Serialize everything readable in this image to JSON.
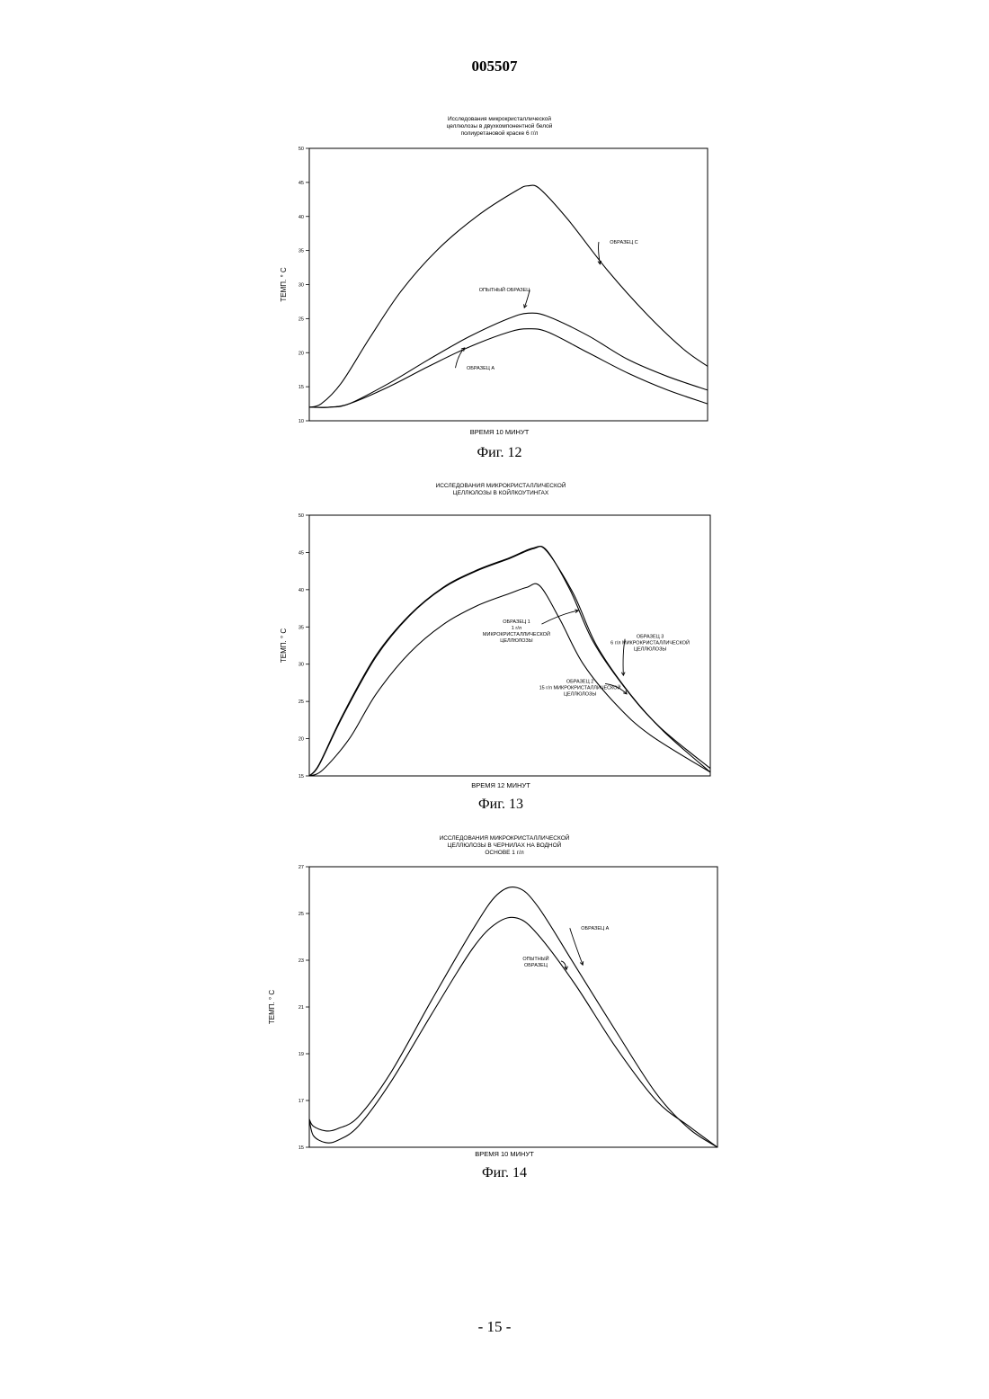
{
  "header": {
    "doc_number": "005507"
  },
  "footer": {
    "page_number": "- 15 -"
  },
  "chart_data": [
    {
      "type": "line",
      "caption": "Фиг. 12",
      "title_lines": [
        "Исследования микрокристаллической",
        "целлюлозы в двухкомпонентной белой",
        "полиуретановой краске 6 г/л"
      ],
      "ylabel": "ТЕМП. ° С",
      "xlabel": "ВРЕМЯ 10 МИНУТ",
      "ylim": [
        10,
        50
      ],
      "xlim": [
        0,
        10
      ],
      "yticks": [
        "10",
        "15",
        "20",
        "25",
        "30",
        "35",
        "40",
        "45",
        "50"
      ],
      "series": [
        {
          "name": "ОБРАЗЕЦ С",
          "x": [
            0,
            0.3,
            0.8,
            1.5,
            2.3,
            3.2,
            4.2,
            5.2,
            5.5,
            5.8,
            6.5,
            7.5,
            8.5,
            9.4,
            10
          ],
          "values": [
            12,
            12.5,
            15.5,
            22,
            29,
            35,
            40,
            43.8,
            44.5,
            44,
            39.5,
            32,
            25.5,
            20.5,
            18
          ]
        },
        {
          "name": "ОПЫТНЫЙ ОБРАЗЕЦ",
          "x": [
            0,
            0.5,
            1,
            2,
            3,
            4,
            5,
            5.5,
            6,
            7,
            8,
            9,
            10
          ],
          "values": [
            12,
            12,
            12.5,
            15.5,
            19,
            22.3,
            25,
            25.8,
            25.3,
            22.5,
            19,
            16.5,
            14.5
          ]
        },
        {
          "name": "ОБРАЗЕЦ А",
          "x": [
            0,
            0.5,
            1,
            2,
            3,
            4,
            5,
            5.5,
            6,
            7,
            8,
            9,
            10
          ],
          "values": [
            12,
            12,
            12.5,
            15,
            18,
            20.8,
            23,
            23.5,
            23,
            20,
            17,
            14.5,
            12.5
          ]
        }
      ],
      "annotations": [
        {
          "lines": [
            "ОБРАЗЕЦ С"
          ],
          "x": 7.9,
          "y": 36,
          "target_x": 7.3,
          "target_y": 33
        },
        {
          "lines": [
            "ОПЫТНЫЙ ОБРАЗЕЦ"
          ],
          "x": 4.9,
          "y": 29,
          "target_x": 5.4,
          "target_y": 26.6
        },
        {
          "lines": [
            "ОБРАЗЕЦ А"
          ],
          "x": 4.3,
          "y": 17.5,
          "target_x": 3.9,
          "target_y": 20.7
        }
      ]
    },
    {
      "type": "line",
      "caption": "Фиг. 13",
      "title_lines": [
        "ИССЛЕДОВАНИЯ МИКРОКРИСТАЛЛИЧЕСКОЙ",
        "ЦЕЛЛЮЛОЗЫ В КОЙЛКОУТИНГАХ"
      ],
      "ylabel": "ТЕМП. ° С",
      "xlabel": "ВРЕМЯ 12 МИНУТ",
      "ylim": [
        15,
        50
      ],
      "xlim": [
        0,
        12
      ],
      "yticks": [
        "15",
        "20",
        "25",
        "30",
        "35",
        "40",
        "45",
        "50"
      ],
      "series": [
        {
          "name": "ОБРАЗЕЦ 1",
          "x": [
            0,
            0.3,
            1,
            2,
            3,
            4,
            5,
            6,
            6.7,
            7.1,
            7.8,
            8.5,
            9.5,
            10.5,
            12
          ],
          "values": [
            15,
            16.5,
            23,
            31,
            36.5,
            40.2,
            42.5,
            44.2,
            45.5,
            45.3,
            40,
            33,
            26.5,
            21.5,
            16
          ]
        },
        {
          "name": "ОБРАЗЕЦ 3",
          "x": [
            0,
            0.3,
            1,
            2,
            3,
            4,
            5,
            6,
            6.7,
            7.1,
            7.9,
            8.6,
            9.6,
            10.6,
            12
          ],
          "values": [
            15,
            16.6,
            23.2,
            31.2,
            36.6,
            40.3,
            42.6,
            44.3,
            45.6,
            45.2,
            39.5,
            32.5,
            26,
            21,
            15.5
          ]
        },
        {
          "name": "ОБРАЗЕЦ 2",
          "x": [
            0,
            0.4,
            1.2,
            2,
            3,
            4,
            5,
            6,
            6.5,
            6.9,
            7.5,
            8.2,
            9.2,
            10.2,
            12
          ],
          "values": [
            15,
            15.8,
            20,
            26,
            31.5,
            35.3,
            37.8,
            39.5,
            40.3,
            40.5,
            36,
            30,
            24.5,
            20.5,
            15.5
          ]
        }
      ],
      "annotations": [
        {
          "lines": [
            "ОБРАЗЕЦ 1",
            "1 г/л",
            "МИКРОКРИСТАЛЛИЧЕСКОЙ",
            "ЦЕЛЛЮЛОЗЫ"
          ],
          "x": 6.2,
          "y": 35.5,
          "target_x": 8.05,
          "target_y": 37.2
        },
        {
          "lines": [
            "ОБРАЗЕЦ 3",
            "6 г/л МИКРОКРИСТАЛЛИЧЕСКОЙ",
            "ЦЕЛЛЮЛОЗЫ"
          ],
          "x": 10.2,
          "y": 33.5,
          "target_x": 9.4,
          "target_y": 28.5
        },
        {
          "lines": [
            "ОБРАЗЕЦ 2",
            "15 г/л МИКРОКРИСТАЛЛИЧЕСКОЙ",
            "ЦЕЛЛЮЛОЗЫ"
          ],
          "x": 8.1,
          "y": 27.5,
          "target_x": 9.5,
          "target_y": 26
        }
      ]
    },
    {
      "type": "line",
      "caption": "Фиг. 14",
      "title_lines": [
        "ИССЛЕДОВАНИЯ МИКРОКРИСТАЛЛИЧЕСКОЙ",
        "ЦЕЛЛЮЛОЗЫ В ЧЕРНИЛАХ НА ВОДНОЙ",
        "ОСНОВЕ 1 г/л"
      ],
      "ylabel": "ТЕМП. ° С",
      "xlabel": "ВРЕМЯ 10 МИНУТ",
      "ylim": [
        15,
        27
      ],
      "xlim": [
        0,
        10
      ],
      "yticks": [
        "15",
        "17",
        "19",
        "21",
        "23",
        "25",
        "27"
      ],
      "series": [
        {
          "name": "ОБРАЗЕЦ А",
          "x": [
            0,
            0.1,
            0.4,
            0.7,
            1.2,
            2,
            3,
            4,
            4.6,
            5.1,
            5.6,
            6.5,
            7.5,
            8.5,
            9.3,
            10
          ],
          "values": [
            16.2,
            15.9,
            15.7,
            15.8,
            16.3,
            18.2,
            21.3,
            24.3,
            25.8,
            26.1,
            25.3,
            22.8,
            20,
            17.3,
            15.8,
            15
          ]
        },
        {
          "name": "ОПЫТНЫЙ ОБРАЗЕЦ",
          "x": [
            0,
            0.1,
            0.4,
            0.7,
            1.2,
            2,
            3,
            4,
            4.6,
            5.1,
            5.6,
            6.5,
            7.5,
            8.5,
            9.3,
            10
          ],
          "values": [
            16.2,
            15.5,
            15.2,
            15.3,
            15.9,
            17.8,
            20.7,
            23.5,
            24.6,
            24.8,
            24.1,
            22,
            19.3,
            17,
            15.9,
            15
          ]
        }
      ],
      "annotations": [
        {
          "lines": [
            "ОБРАЗЕЦ А"
          ],
          "x": 7.0,
          "y": 24.3,
          "target_x": 6.7,
          "target_y": 22.8
        },
        {
          "lines": [
            "ОПЫТНЫЙ",
            "ОБРАЗЕЦ"
          ],
          "x": 5.55,
          "y": 23,
          "target_x": 6.3,
          "target_y": 22.6
        }
      ]
    }
  ]
}
